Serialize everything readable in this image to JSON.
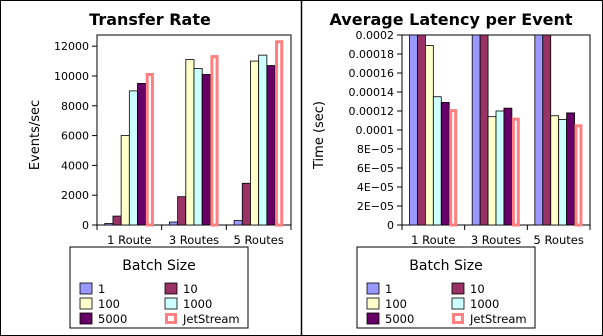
{
  "chart_data": [
    {
      "type": "bar",
      "title": "Transfer Rate",
      "xlabel": "",
      "ylabel": "Events/sec",
      "categories": [
        "1 Route",
        "3 Routes",
        "5 Routes"
      ],
      "ylim": [
        0,
        13000
      ],
      "yticks": [
        "0",
        "2000",
        "4000",
        "6000",
        "8000",
        "10000",
        "12000"
      ],
      "ytick_values": [
        0,
        2000,
        4000,
        6000,
        8000,
        10000,
        12000
      ],
      "legend_title": "Batch Size",
      "legend_position": "bottom",
      "series": [
        {
          "name": "1",
          "color": "#9999ff",
          "values": [
            100,
            200,
            300
          ]
        },
        {
          "name": "10",
          "color": "#993366",
          "values": [
            600,
            1900,
            2800
          ]
        },
        {
          "name": "100",
          "color": "#ffffcc",
          "values": [
            6000,
            11100,
            11000
          ]
        },
        {
          "name": "1000",
          "color": "#ccffff",
          "values": [
            9000,
            10500,
            11400
          ]
        },
        {
          "name": "5000",
          "color": "#660066",
          "values": [
            9500,
            10100,
            10700
          ]
        },
        {
          "name": "JetStream",
          "color": "#ff8080",
          "hollow": true,
          "values": [
            10200,
            11400,
            12400
          ]
        }
      ]
    },
    {
      "type": "bar",
      "title": "Average Latency per Event",
      "xlabel": "",
      "ylabel": "Time (sec)",
      "categories": [
        "1 Route",
        "3 Routes",
        "5 Routes"
      ],
      "ylim": [
        0,
        0.0002
      ],
      "yticks": [
        "0",
        "2E−05",
        "4E−05",
        "6E−05",
        "8E−05",
        "0.0001",
        "0.00012",
        "0.00014",
        "0.00016",
        "0.00018",
        "0.0002"
      ],
      "ytick_values": [
        0,
        2e-05,
        4e-05,
        6e-05,
        8e-05,
        0.0001,
        0.00012,
        0.00014,
        0.00016,
        0.00018,
        0.0002
      ],
      "legend_title": "Batch Size",
      "legend_position": "bottom",
      "series": [
        {
          "name": "1",
          "color": "#9999ff",
          "values": [
            0.0002,
            0.0002,
            0.0002
          ]
        },
        {
          "name": "10",
          "color": "#993366",
          "values": [
            0.0002,
            0.0002,
            0.0002
          ]
        },
        {
          "name": "100",
          "color": "#ffffcc",
          "values": [
            0.000189,
            0.000114,
            0.000115
          ]
        },
        {
          "name": "1000",
          "color": "#ccffff",
          "values": [
            0.000135,
            0.00012,
            0.000111
          ]
        },
        {
          "name": "5000",
          "color": "#660066",
          "values": [
            0.000129,
            0.000123,
            0.000118
          ]
        },
        {
          "name": "JetStream",
          "color": "#ff8080",
          "hollow": true,
          "values": [
            0.000122,
            0.000113,
            0.000106
          ]
        }
      ]
    }
  ]
}
